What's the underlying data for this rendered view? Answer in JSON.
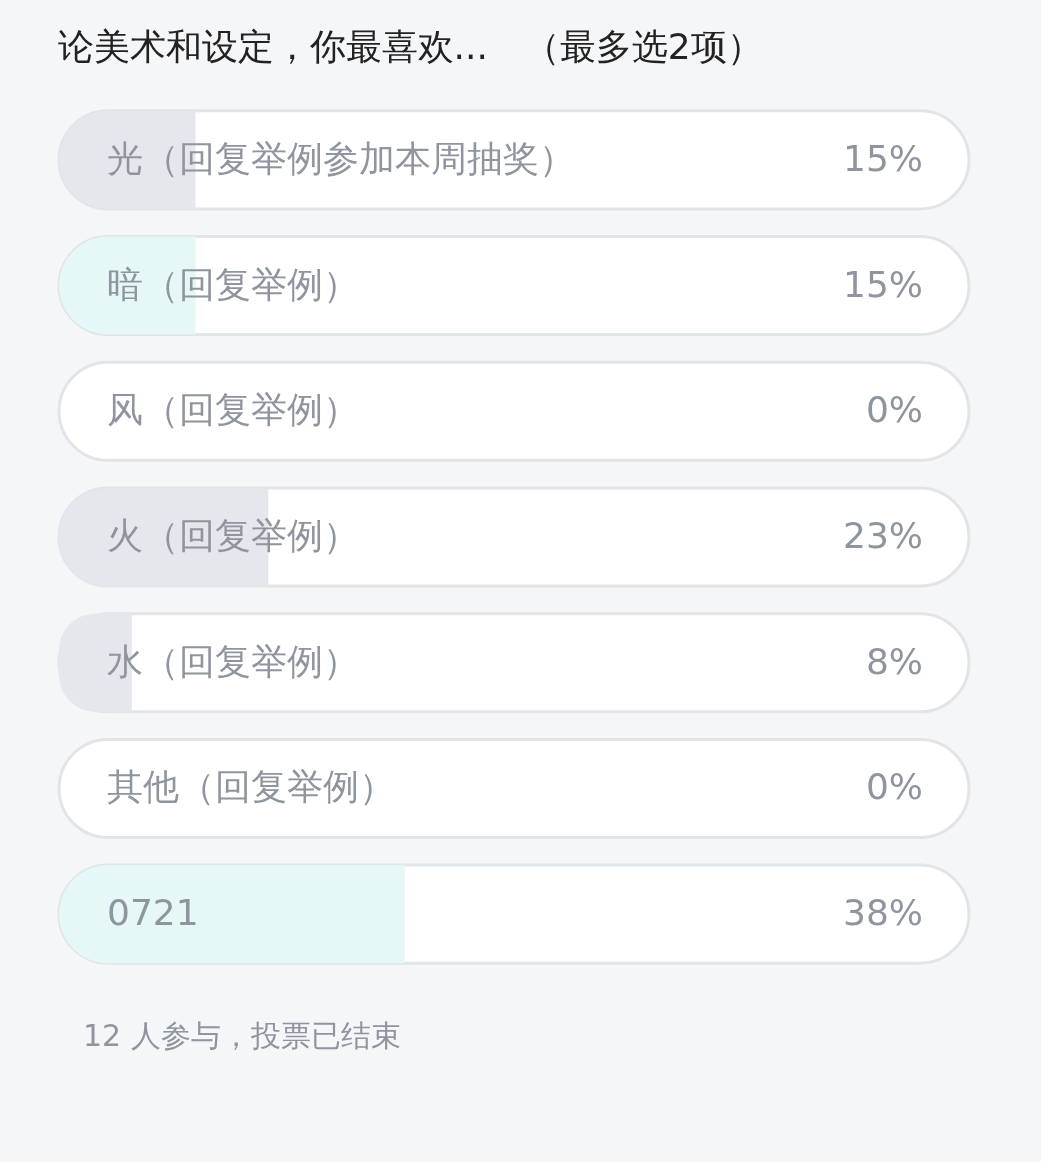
{
  "chart_data": {
    "type": "bar",
    "orientation": "horizontal",
    "title": "论美术和设定，你最喜欢...　（最多选2项）",
    "categories": [
      "光（回复举例参加本周抽奖）",
      "暗（回复举例）",
      "风（回复举例）",
      "火（回复举例）",
      "水（回复举例）",
      "其他（回复举例）",
      "0721"
    ],
    "values": [
      15,
      15,
      0,
      23,
      8,
      0,
      38
    ],
    "value_labels": [
      "15%",
      "15%",
      "0%",
      "23%",
      "8%",
      "0%",
      "38%"
    ],
    "colors": [
      "#e4e7ec",
      "#e5f8f6",
      "#e4e7ec",
      "#e4e7ec",
      "#e4e7ec",
      "#e4e7ec",
      "#e5f8f6"
    ],
    "xlim": [
      0,
      100
    ],
    "tick_labels": false,
    "annotations": [
      "12 人参与，投票已结束"
    ]
  }
}
